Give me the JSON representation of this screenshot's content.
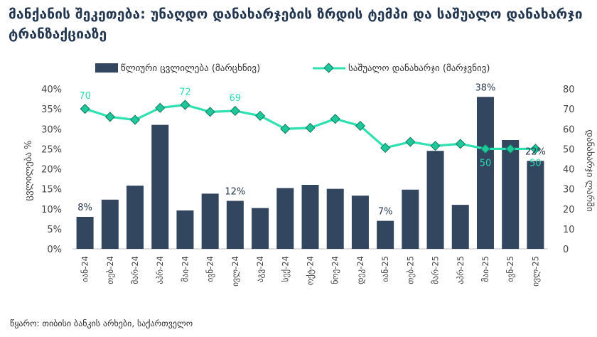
{
  "chart_data": {
    "type": "bar+line",
    "title": "მანქანის შეკეთება: უნაღდო დანახარჯების ზრდის ტემპი და საშუალო დანახარჯი ტრანზაქციაზე",
    "categories": [
      "იან-24",
      "თებ-24",
      "მარ-24",
      "აპრ-24",
      "მაი-24",
      "ივნ-24",
      "ივლ-24",
      "აგვ-24",
      "სექ-24",
      "ოქტ-24",
      "ნოე-24",
      "დეკ-24",
      "იან-25",
      "თებ-25",
      "მარ-25",
      "აპრ-25",
      "მაი-25",
      "ივნ-25",
      "ივლ-25"
    ],
    "series": [
      {
        "name": "წლიური ცვლილება (მარცხნივ)",
        "type": "bar",
        "axis": "left",
        "color": "#33465f",
        "values": [
          8,
          12.3,
          15.8,
          31,
          9.6,
          13.8,
          12,
          10.2,
          15.2,
          16,
          15,
          13.3,
          7,
          14.8,
          24.5,
          11,
          38,
          27.2,
          22
        ],
        "labels": {
          "0": "8%",
          "6": "12%",
          "12": "7%",
          "16": "38%",
          "18": "22%"
        }
      },
      {
        "name": "საშუალო დანახარჯი (მარჯვნივ)",
        "type": "line",
        "axis": "right",
        "color": "#2fe0b0",
        "values": [
          70,
          66,
          64.5,
          70.5,
          72,
          68.5,
          69,
          66.5,
          60,
          60.5,
          65,
          61.5,
          50.5,
          53.5,
          51.5,
          52.5,
          50,
          50,
          50
        ],
        "labels": {
          "0": "70",
          "4": "72",
          "6": "69",
          "16": "50",
          "18": "50"
        }
      }
    ],
    "y_left": {
      "min": 0,
      "max": 40,
      "step": 5,
      "format": "percent",
      "label": "ცვლილება %"
    },
    "y_right": {
      "min": 0,
      "max": 80,
      "step": 10,
      "label": "დანახარჯი ლარში"
    },
    "legend_position": "top"
  },
  "source": "წყარო: თიბისი ბანკის არხები, საქართველო",
  "y_left_ticks": [
    "0%",
    "5%",
    "10%",
    "15%",
    "20%",
    "25%",
    "30%",
    "35%",
    "40%"
  ],
  "y_right_ticks": [
    "0",
    "10",
    "20",
    "30",
    "40",
    "50",
    "60",
    "70",
    "80"
  ]
}
